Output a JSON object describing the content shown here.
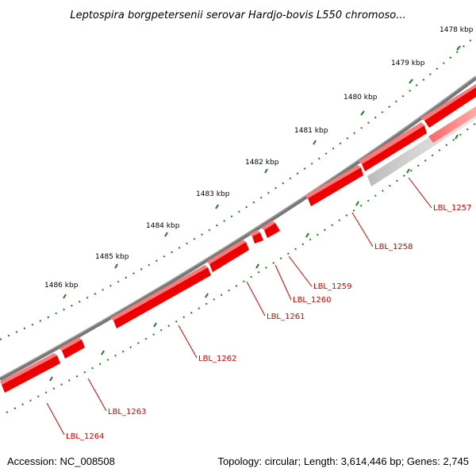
{
  "title": "Leptospira borgpetersenii serovar Hardjo-bovis L550 chromoso...",
  "footer": {
    "accession": "Accession: NC_008508",
    "summary": "Topology: circular; Length: 3,614,446 bp; Genes: 2,745"
  },
  "colors": {
    "backbone": "#777777",
    "gene": "#ee0000",
    "gene_label": "#d40000",
    "tick": "#1f7a1f",
    "faded_gene": "#cccccc"
  },
  "scale_labels": [
    "1478 kbp",
    "1479 kbp",
    "1480 kbp",
    "1481 kbp",
    "1482 kbp",
    "1483 kbp",
    "1484 kbp",
    "1485 kbp",
    "1486 kbp"
  ],
  "genes": [
    "LBL_1257",
    "LBL_1258",
    "LBL_1259",
    "LBL_1260",
    "LBL_1261",
    "LBL_1262",
    "LBL_1263",
    "LBL_1264"
  ]
}
